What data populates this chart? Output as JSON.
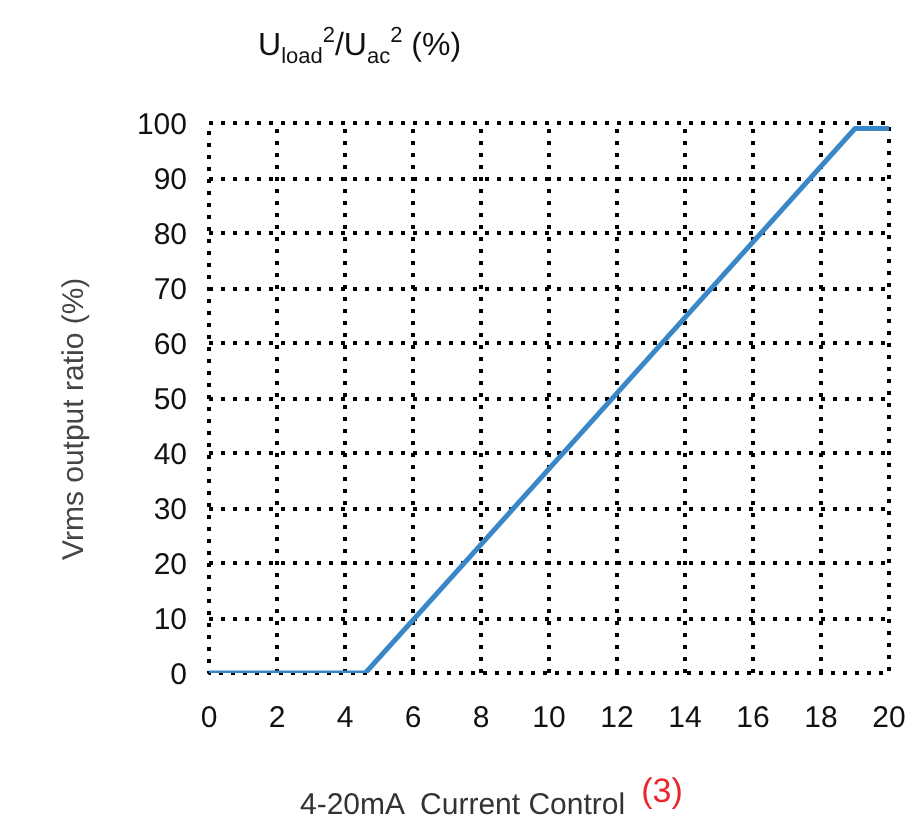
{
  "chart_data": {
    "type": "line",
    "title": "U$_{load}$$^{2}$/U$_{ac}$$^{2}$ (%)",
    "xlabel": "4-20mA  Current Control",
    "ylabel": "Vrms   output   ratio  (%)",
    "annotations": [
      "(3)"
    ],
    "series": [
      {
        "color": "#3a87c8",
        "x": [
          0,
          4.6,
          19,
          20
        ],
        "values": [
          0,
          0,
          99,
          99
        ]
      }
    ],
    "xlim": [
      0,
      20
    ],
    "xticks": [
      0,
      2,
      4,
      6,
      8,
      10,
      12,
      14,
      16,
      18,
      20
    ],
    "ylim": [
      0,
      100
    ],
    "yticks": [
      0,
      10,
      20,
      30,
      40,
      50,
      60,
      70,
      80,
      90,
      100
    ],
    "grid": true,
    "line_style": "solid",
    "marker": "none"
  }
}
